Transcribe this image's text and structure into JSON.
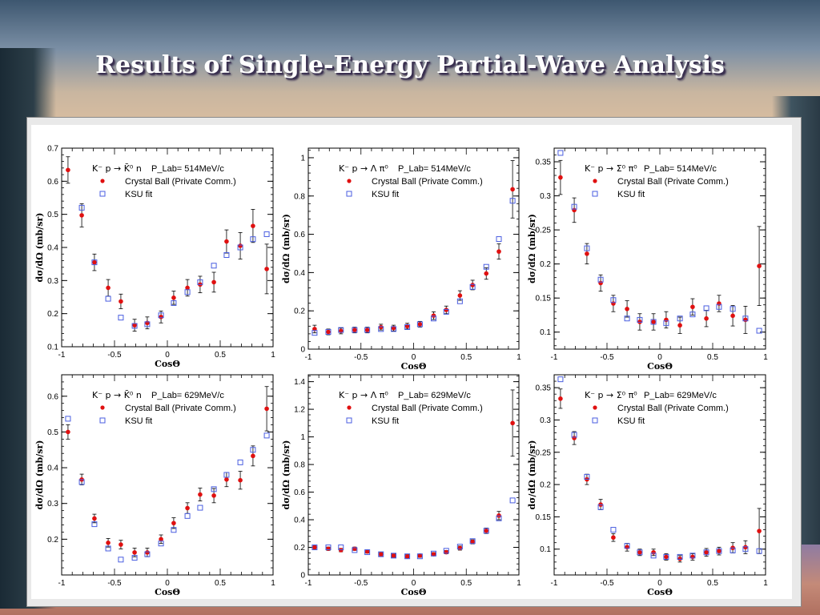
{
  "slide": {
    "title": "Results of Single-Energy Partial-Wave Analysis"
  },
  "colors": {
    "crystal_ball": "#e01010",
    "ksu_fit": "#4a5ee0",
    "axes": "#000000"
  },
  "legend_labels": {
    "crystal_ball": "Crystal Ball (Private Comm.)",
    "ksu_fit": "KSU fit"
  },
  "chart_data": [
    {
      "type": "scatter",
      "reaction": "K⁻ p → K̄⁰ n",
      "plab": "P_Lab= 514MeV/c",
      "xlabel": "CosΘ",
      "ylabel": "dσ/dΩ (mb/sr)",
      "xlim": [
        -1,
        1
      ],
      "ylim": [
        0.1,
        0.7
      ],
      "x_ticks": [
        "-1",
        "-0.5",
        "0",
        "0.5",
        "1"
      ],
      "y_ticks": [
        0.1,
        0.2,
        0.3,
        0.4,
        0.5,
        0.6,
        0.7
      ],
      "legend": "top",
      "series": [
        {
          "name": "Crystal Ball (Private Comm.)",
          "marker": "dot",
          "x": [
            -0.94,
            -0.81,
            -0.69,
            -0.56,
            -0.44,
            -0.31,
            -0.19,
            -0.06,
            0.06,
            0.19,
            0.31,
            0.44,
            0.56,
            0.69,
            0.81,
            0.94
          ],
          "y": [
            0.634,
            0.497,
            0.355,
            0.278,
            0.237,
            0.165,
            0.172,
            0.19,
            0.248,
            0.278,
            0.288,
            0.295,
            0.418,
            0.405,
            0.465,
            0.335
          ],
          "err": [
            0.04,
            0.035,
            0.025,
            0.025,
            0.022,
            0.018,
            0.018,
            0.018,
            0.02,
            0.025,
            0.025,
            0.03,
            0.035,
            0.04,
            0.05,
            0.075
          ]
        },
        {
          "name": "KSU fit",
          "marker": "open-square",
          "x": [
            -0.81,
            -0.69,
            -0.56,
            -0.44,
            -0.31,
            -0.19,
            -0.06,
            0.06,
            0.19,
            0.31,
            0.44,
            0.56,
            0.69,
            0.81,
            0.94
          ],
          "y": [
            0.52,
            0.355,
            0.245,
            0.188,
            0.163,
            0.168,
            0.195,
            0.232,
            0.265,
            0.295,
            0.345,
            0.377,
            0.4,
            0.425,
            0.44
          ]
        }
      ]
    },
    {
      "type": "scatter",
      "reaction": "K⁻ p → Λ π⁰",
      "plab": "P_Lab= 514MeV/c",
      "xlabel": "CosΘ",
      "ylabel": "dσ/dΩ (mb/sr)",
      "xlim": [
        -1,
        1
      ],
      "ylim": [
        0,
        1.05
      ],
      "x_ticks": [
        "-1",
        "-0.5",
        "0",
        "0.5",
        "1"
      ],
      "y_ticks": [
        0,
        0.2,
        0.4,
        0.6,
        0.8,
        1
      ],
      "legend": "top",
      "series": [
        {
          "name": "Crystal Ball (Private Comm.)",
          "marker": "dot",
          "x": [
            -0.94,
            -0.81,
            -0.69,
            -0.56,
            -0.44,
            -0.31,
            -0.19,
            -0.06,
            0.06,
            0.19,
            0.31,
            0.44,
            0.56,
            0.69,
            0.81,
            0.94
          ],
          "y": [
            0.105,
            0.09,
            0.095,
            0.1,
            0.1,
            0.115,
            0.11,
            0.12,
            0.13,
            0.175,
            0.205,
            0.28,
            0.335,
            0.395,
            0.51,
            0.835
          ],
          "err": [
            0.02,
            0.015,
            0.015,
            0.015,
            0.015,
            0.015,
            0.015,
            0.015,
            0.015,
            0.02,
            0.02,
            0.025,
            0.025,
            0.03,
            0.04,
            0.15
          ]
        },
        {
          "name": "KSU fit",
          "marker": "open-square",
          "x": [
            -0.94,
            -0.81,
            -0.69,
            -0.56,
            -0.44,
            -0.31,
            -0.19,
            -0.06,
            0.06,
            0.19,
            0.31,
            0.44,
            0.56,
            0.69,
            0.81,
            0.94
          ],
          "y": [
            0.085,
            0.09,
            0.1,
            0.1,
            0.1,
            0.105,
            0.105,
            0.115,
            0.13,
            0.16,
            0.195,
            0.25,
            0.325,
            0.43,
            0.575,
            0.775
          ]
        }
      ]
    },
    {
      "type": "scatter",
      "reaction": "K⁻ p → Σ⁰ π⁰",
      "plab": "P_Lab= 514MeV/c",
      "xlabel": "CosΘ",
      "ylabel": "dσ/dΩ (mb/sr)",
      "xlim": [
        -1,
        1
      ],
      "ylim": [
        0.075,
        0.37
      ],
      "x_ticks": [
        "-1",
        "-0.5",
        "0",
        "0.5",
        "1"
      ],
      "y_ticks": [
        0.1,
        0.15,
        0.2,
        0.25,
        0.3,
        0.35
      ],
      "legend": "top",
      "series": [
        {
          "name": "Crystal Ball (Private Comm.)",
          "marker": "dot",
          "x": [
            -0.94,
            -0.81,
            -0.69,
            -0.56,
            -0.44,
            -0.31,
            -0.19,
            -0.06,
            0.06,
            0.19,
            0.31,
            0.44,
            0.56,
            0.69,
            0.81,
            0.94
          ],
          "y": [
            0.327,
            0.279,
            0.215,
            0.172,
            0.142,
            0.134,
            0.115,
            0.115,
            0.118,
            0.11,
            0.137,
            0.12,
            0.142,
            0.124,
            0.118,
            0.197
          ],
          "err": [
            0.025,
            0.018,
            0.015,
            0.012,
            0.012,
            0.012,
            0.012,
            0.012,
            0.012,
            0.012,
            0.012,
            0.012,
            0.012,
            0.015,
            0.02,
            0.058
          ]
        },
        {
          "name": "KSU fit",
          "marker": "open-square",
          "x": [
            -0.94,
            -0.81,
            -0.69,
            -0.56,
            -0.44,
            -0.31,
            -0.19,
            -0.06,
            0.06,
            0.19,
            0.31,
            0.44,
            0.56,
            0.69,
            0.81,
            0.94
          ],
          "y": [
            0.363,
            0.284,
            0.223,
            0.177,
            0.147,
            0.12,
            0.118,
            0.115,
            0.113,
            0.12,
            0.126,
            0.135,
            0.137,
            0.134,
            0.12,
            0.102
          ]
        }
      ]
    },
    {
      "type": "scatter",
      "reaction": "K⁻ p → K̄⁰ n",
      "plab": "P_Lab= 629MeV/c",
      "xlabel": "CosΘ",
      "ylabel": "dσ/dΩ (mb/sr)",
      "xlim": [
        -1,
        1
      ],
      "ylim": [
        0.1,
        0.66
      ],
      "x_ticks": [
        "-1",
        "-0.5",
        "0",
        "0.5",
        "1"
      ],
      "y_ticks": [
        0.2,
        0.3,
        0.4,
        0.5,
        0.6
      ],
      "legend": "top",
      "series": [
        {
          "name": "Crystal Ball (Private Comm.)",
          "marker": "dot",
          "x": [
            -0.94,
            -0.81,
            -0.69,
            -0.56,
            -0.44,
            -0.31,
            -0.19,
            -0.06,
            0.06,
            0.19,
            0.31,
            0.44,
            0.56,
            0.69,
            0.81,
            0.94
          ],
          "y": [
            0.5,
            0.367,
            0.258,
            0.19,
            0.185,
            0.163,
            0.163,
            0.2,
            0.245,
            0.287,
            0.325,
            0.322,
            0.367,
            0.365,
            0.433,
            0.565
          ],
          "err": [
            0.02,
            0.015,
            0.012,
            0.012,
            0.012,
            0.012,
            0.012,
            0.012,
            0.015,
            0.015,
            0.018,
            0.02,
            0.02,
            0.025,
            0.028,
            0.062
          ]
        },
        {
          "name": "KSU fit",
          "marker": "open-square",
          "x": [
            -0.94,
            -0.81,
            -0.69,
            -0.56,
            -0.44,
            -0.31,
            -0.19,
            -0.06,
            0.06,
            0.19,
            0.31,
            0.44,
            0.56,
            0.69,
            0.81,
            0.94
          ],
          "y": [
            0.537,
            0.36,
            0.242,
            0.174,
            0.143,
            0.148,
            0.158,
            0.188,
            0.226,
            0.265,
            0.288,
            0.34,
            0.38,
            0.415,
            0.45,
            0.49
          ]
        }
      ]
    },
    {
      "type": "scatter",
      "reaction": "K⁻ p → Λ π⁰",
      "plab": "P_Lab= 629MeV/c",
      "xlabel": "CosΘ",
      "ylabel": "dσ/dΩ (mb/sr)",
      "xlim": [
        -1,
        1
      ],
      "ylim": [
        0,
        1.45
      ],
      "x_ticks": [
        "-1",
        "-0.5",
        "0",
        "0.5",
        "1"
      ],
      "y_ticks": [
        0,
        0.2,
        0.4,
        0.6,
        0.8,
        1,
        1.2,
        1.4
      ],
      "legend": "top",
      "series": [
        {
          "name": "Crystal Ball (Private Comm.)",
          "marker": "dot",
          "x": [
            -0.94,
            -0.81,
            -0.69,
            -0.56,
            -0.44,
            -0.31,
            -0.19,
            -0.06,
            0.06,
            0.19,
            0.31,
            0.44,
            0.56,
            0.69,
            0.81,
            0.94
          ],
          "y": [
            0.2,
            0.19,
            0.18,
            0.19,
            0.17,
            0.15,
            0.14,
            0.135,
            0.14,
            0.15,
            0.165,
            0.195,
            0.24,
            0.32,
            0.43,
            1.1
          ],
          "err": [
            0.015,
            0.012,
            0.012,
            0.012,
            0.012,
            0.012,
            0.012,
            0.012,
            0.012,
            0.012,
            0.012,
            0.015,
            0.015,
            0.02,
            0.03,
            0.24
          ]
        },
        {
          "name": "KSU fit",
          "marker": "open-square",
          "x": [
            -0.94,
            -0.81,
            -0.69,
            -0.56,
            -0.44,
            -0.31,
            -0.19,
            -0.06,
            0.06,
            0.19,
            0.31,
            0.44,
            0.56,
            0.69,
            0.81,
            0.94
          ],
          "y": [
            0.2,
            0.2,
            0.2,
            0.18,
            0.165,
            0.15,
            0.14,
            0.135,
            0.135,
            0.155,
            0.175,
            0.205,
            0.245,
            0.32,
            0.41,
            0.54
          ]
        }
      ]
    },
    {
      "type": "scatter",
      "reaction": "K⁻ p → Σ⁰ π⁰",
      "plab": "P_Lab= 629MeV/c",
      "xlabel": "CosΘ",
      "ylabel": "dσ/dΩ (mb/sr)",
      "xlim": [
        -1,
        1
      ],
      "ylim": [
        0.06,
        0.37
      ],
      "x_ticks": [
        "-1",
        "-0.5",
        "0",
        "0.5",
        "1"
      ],
      "y_ticks": [
        0.1,
        0.15,
        0.2,
        0.25,
        0.3,
        0.35
      ],
      "legend": "top",
      "series": [
        {
          "name": "Crystal Ball (Private Comm.)",
          "marker": "dot",
          "x": [
            -0.94,
            -0.81,
            -0.69,
            -0.56,
            -0.44,
            -0.31,
            -0.19,
            -0.06,
            0.06,
            0.19,
            0.31,
            0.44,
            0.56,
            0.69,
            0.81,
            0.94
          ],
          "y": [
            0.333,
            0.272,
            0.208,
            0.169,
            0.118,
            0.103,
            0.095,
            0.095,
            0.088,
            0.085,
            0.088,
            0.095,
            0.097,
            0.102,
            0.103,
            0.128
          ],
          "err": [
            0.015,
            0.01,
            0.008,
            0.008,
            0.006,
            0.006,
            0.005,
            0.005,
            0.005,
            0.005,
            0.005,
            0.006,
            0.006,
            0.008,
            0.01,
            0.035
          ]
        },
        {
          "name": "KSU fit",
          "marker": "open-square",
          "x": [
            -0.94,
            -0.81,
            -0.69,
            -0.56,
            -0.44,
            -0.31,
            -0.19,
            -0.06,
            0.06,
            0.19,
            0.31,
            0.44,
            0.56,
            0.69,
            0.81,
            0.94
          ],
          "y": [
            0.363,
            0.277,
            0.212,
            0.165,
            0.13,
            0.105,
            0.095,
            0.09,
            0.088,
            0.088,
            0.09,
            0.095,
            0.097,
            0.098,
            0.1,
            0.097
          ]
        }
      ]
    }
  ]
}
